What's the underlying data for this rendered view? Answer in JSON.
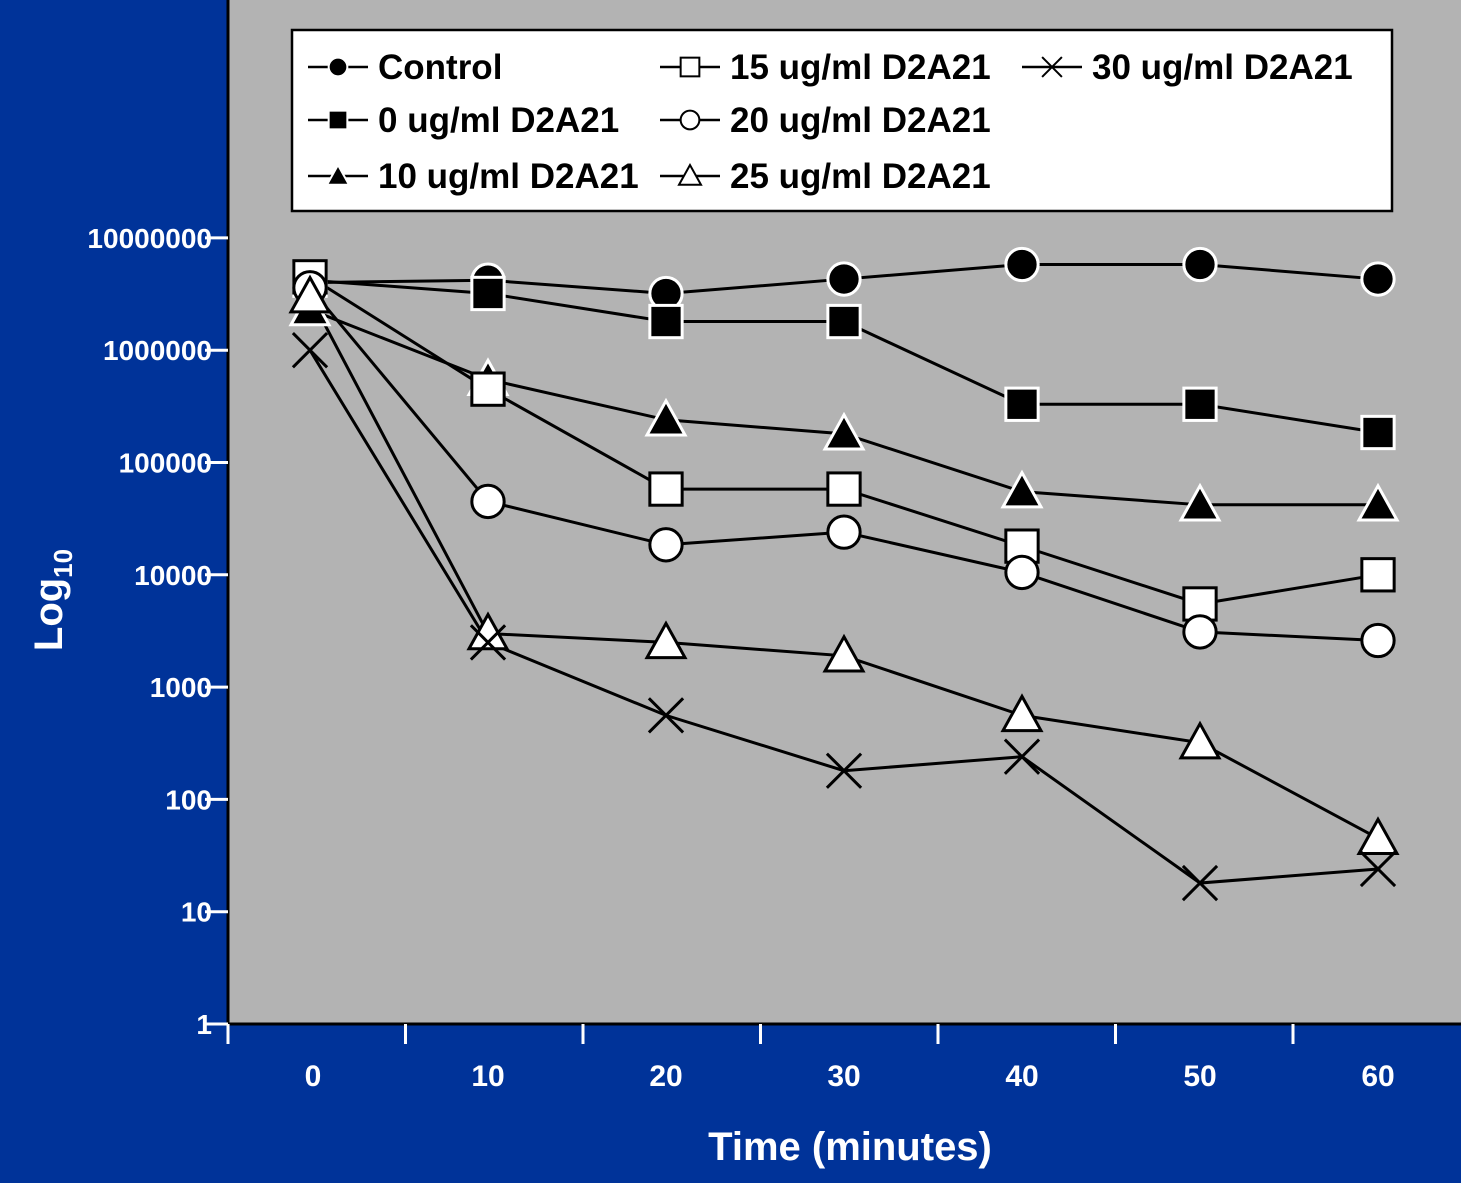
{
  "colors": {
    "background": "#003399",
    "plot_area": "#b3b3b3",
    "line": "#000000",
    "legend_bg": "#ffffff",
    "text": "#ffffff"
  },
  "chart_data": {
    "type": "line",
    "title": "",
    "xlabel": "Time (minutes)",
    "ylabel": "Log",
    "ylabel_subscript": "10",
    "y_scale": "log",
    "ylim": [
      1,
      10000000
    ],
    "xlim": [
      0,
      60
    ],
    "grid": false,
    "legend_position": "top",
    "x": [
      0,
      10,
      20,
      30,
      40,
      50,
      60
    ],
    "x_tick_labels": [
      "0",
      "10",
      "20",
      "30",
      "40",
      "50",
      "60"
    ],
    "y_ticks": [
      1,
      10,
      100,
      1000,
      10000,
      100000,
      1000000,
      10000000
    ],
    "y_tick_labels": [
      "1",
      "10",
      "100",
      "1000",
      "10000",
      "100000",
      "1000000",
      "10000000"
    ],
    "series": [
      {
        "name": "Control",
        "marker": "circle-filled",
        "values": [
          4000000,
          4200000,
          3200000,
          4300000,
          5800000,
          5800000,
          4300000
        ]
      },
      {
        "name": "0 ug/ml D2A21",
        "marker": "square-filled",
        "values": [
          4200000,
          3200000,
          1800000,
          1800000,
          330000,
          330000,
          185000
        ]
      },
      {
        "name": "10 ug/ml D2A21",
        "marker": "triangle-filled",
        "values": [
          2300000,
          550000,
          240000,
          180000,
          55000,
          42000,
          42000
        ]
      },
      {
        "name": "15 ug/ml D2A21",
        "marker": "square-open",
        "values": [
          4500000,
          450000,
          58000,
          58000,
          18000,
          5500,
          10000
        ]
      },
      {
        "name": "20 ug/ml D2A21",
        "marker": "circle-open",
        "values": [
          3600000,
          45000,
          18500,
          24000,
          10500,
          3100,
          2600
        ]
      },
      {
        "name": "25 ug/ml D2A21",
        "marker": "triangle-open",
        "values": [
          3000000,
          3000,
          2500,
          1900,
          560,
          320,
          45
        ]
      },
      {
        "name": "30 ug/ml D2A21",
        "marker": "x",
        "values": [
          1000000,
          2500,
          560,
          180,
          240,
          18,
          24
        ]
      }
    ]
  }
}
